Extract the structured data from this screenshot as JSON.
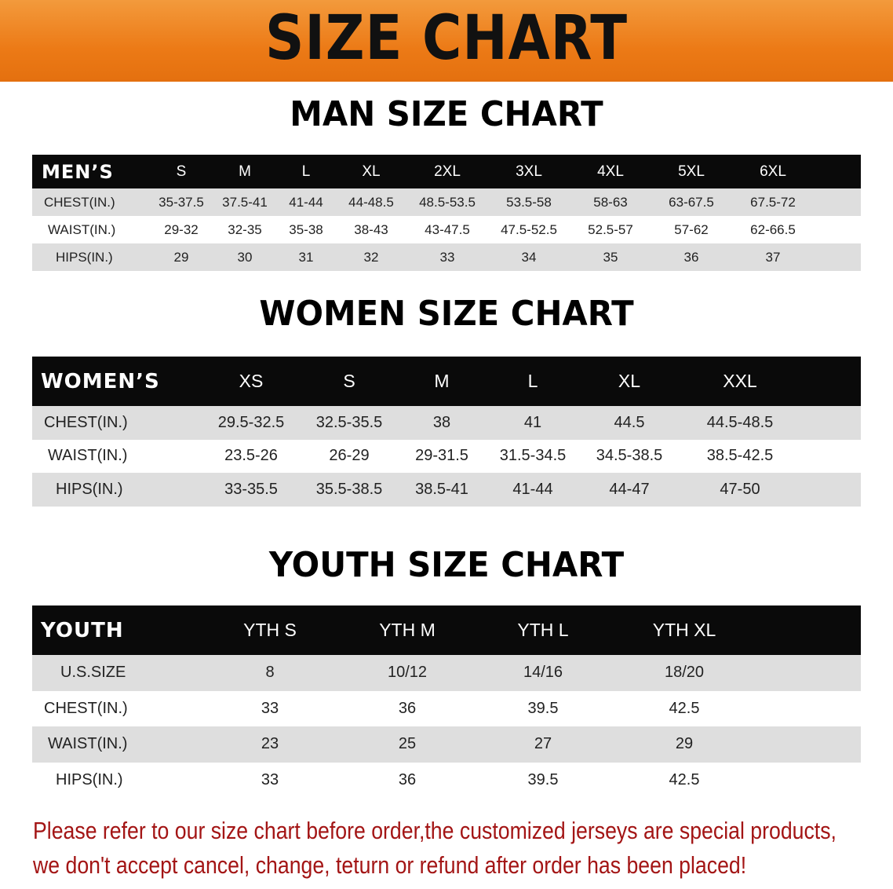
{
  "banner": {
    "title": "SIZE CHART",
    "color": "#ec7a16"
  },
  "men": {
    "title": "MAN SIZE CHART",
    "header": [
      "MEN’S",
      "S",
      "M",
      "L",
      "XL",
      "2XL",
      "3XL",
      "4XL",
      "5XL",
      "6XL"
    ],
    "rows": [
      [
        "CHEST(IN.)",
        "35-37.5",
        "37.5-41",
        "41-44",
        "44-48.5",
        "48.5-53.5",
        "53.5-58",
        "58-63",
        "63-67.5",
        "67.5-72"
      ],
      [
        "WAIST(IN.)",
        "29-32",
        "32-35",
        "35-38",
        "38-43",
        "43-47.5",
        "47.5-52.5",
        "52.5-57",
        "57-62",
        "62-66.5"
      ],
      [
        "HIPS(IN.)",
        "29",
        "30",
        "31",
        "32",
        "33",
        "34",
        "35",
        "36",
        "37"
      ]
    ]
  },
  "women": {
    "title": "WOMEN SIZE CHART",
    "header": [
      "WOMEN’S",
      "XS",
      "S",
      "M",
      "L",
      "XL",
      "XXL"
    ],
    "rows": [
      [
        "CHEST(IN.)",
        "29.5-32.5",
        "32.5-35.5",
        "38",
        "41",
        "44.5",
        "44.5-48.5"
      ],
      [
        "WAIST(IN.)",
        "23.5-26",
        "26-29",
        "29-31.5",
        "31.5-34.5",
        "34.5-38.5",
        "38.5-42.5"
      ],
      [
        "HIPS(IN.)",
        "33-35.5",
        "35.5-38.5",
        "38.5-41",
        "41-44",
        "44-47",
        "47-50"
      ]
    ]
  },
  "youth": {
    "title": "YOUTH SIZE CHART",
    "header": [
      "YOUTH",
      "YTH S",
      "YTH M",
      "YTH L",
      "YTH XL"
    ],
    "rows": [
      [
        "U.S.SIZE",
        "8",
        "10/12",
        "14/16",
        "18/20"
      ],
      [
        "CHEST(IN.)",
        "33",
        "36",
        "39.5",
        "42.5"
      ],
      [
        "WAIST(IN.)",
        "23",
        "25",
        "27",
        "29"
      ],
      [
        "HIPS(IN.)",
        "33",
        "36",
        "39.5",
        "42.5"
      ]
    ]
  },
  "note": {
    "line1": "Please refer to our size chart before order,the customized jerseys are special products,",
    "line2": "we don't accept cancel, change, teturn or refund after order has been placed!",
    "color": "#a31515"
  }
}
